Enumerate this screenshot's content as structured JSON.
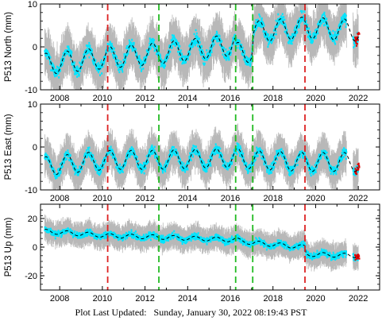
{
  "footer": {
    "label": "Plot Last Updated:",
    "timestamp": "Sunday, January 30, 2022 08:19:43 PST"
  },
  "colors": {
    "error_bars": "#b8b8b8",
    "observations": "#00e5ff",
    "model": "#000000",
    "event_red": "#dd2222",
    "event_green": "#22bb22",
    "recent_points": "#dd0000"
  },
  "chart_data": [
    {
      "type": "scatter",
      "ylabel": "P513 North (mm)",
      "xlim": [
        2007.1,
        2023.0
      ],
      "ylim": [
        -10,
        10
      ],
      "yticks": [
        -10,
        0,
        10
      ],
      "xticks": [
        2008,
        2010,
        2012,
        2014,
        2016,
        2018,
        2020,
        2022
      ],
      "grid": false,
      "red_lines": [
        2010.25,
        2019.5
      ],
      "green_lines": [
        2012.65,
        2016.25,
        2017.05
      ],
      "trend": [
        [
          2007.3,
          -4
        ],
        [
          2010.25,
          -2.5
        ],
        [
          2012.65,
          -1.5
        ],
        [
          2016.2,
          0.5
        ],
        [
          2016.3,
          -1.5
        ],
        [
          2017.0,
          -1.0
        ],
        [
          2017.1,
          3.5
        ],
        [
          2019.5,
          4.5
        ],
        [
          2022.0,
          3.8
        ]
      ],
      "seasonal_amplitude": 2.5,
      "scatter": 2.2
    },
    {
      "type": "scatter",
      "ylabel": "P513 East (mm)",
      "xlim": [
        2007.1,
        2023.0
      ],
      "ylim": [
        -10,
        10
      ],
      "yticks": [
        -10,
        0,
        10
      ],
      "xticks": [
        2008,
        2010,
        2012,
        2014,
        2016,
        2018,
        2020,
        2022
      ],
      "grid": false,
      "red_lines": [
        2010.25,
        2019.5
      ],
      "green_lines": [
        2012.65,
        2016.25,
        2017.05
      ],
      "trend": [
        [
          2007.3,
          -4.5
        ],
        [
          2010.25,
          -3.0
        ],
        [
          2012.65,
          -3.0
        ],
        [
          2016.25,
          -2.5
        ],
        [
          2017.05,
          -3.0
        ],
        [
          2019.5,
          -3.5
        ],
        [
          2022.0,
          -3.5
        ]
      ],
      "seasonal_amplitude": 2.2,
      "scatter": 1.8
    },
    {
      "type": "scatter",
      "ylabel": "P513 Up (mm)",
      "xlim": [
        2007.1,
        2023.0
      ],
      "ylim": [
        -30,
        30
      ],
      "yticks": [
        -20,
        0,
        20
      ],
      "xticks": [
        2008,
        2010,
        2012,
        2014,
        2016,
        2018,
        2020,
        2022
      ],
      "grid": false,
      "red_lines": [
        2010.25,
        2019.5
      ],
      "green_lines": [
        2012.65,
        2016.25,
        2017.05
      ],
      "trend": [
        [
          2007.3,
          11
        ],
        [
          2010.25,
          8
        ],
        [
          2012.65,
          7
        ],
        [
          2016.25,
          5
        ],
        [
          2017.05,
          3
        ],
        [
          2019.5,
          0
        ],
        [
          2019.55,
          -5
        ],
        [
          2022.0,
          -6
        ]
      ],
      "seasonal_amplitude": 1.5,
      "scatter": 3.5
    }
  ]
}
